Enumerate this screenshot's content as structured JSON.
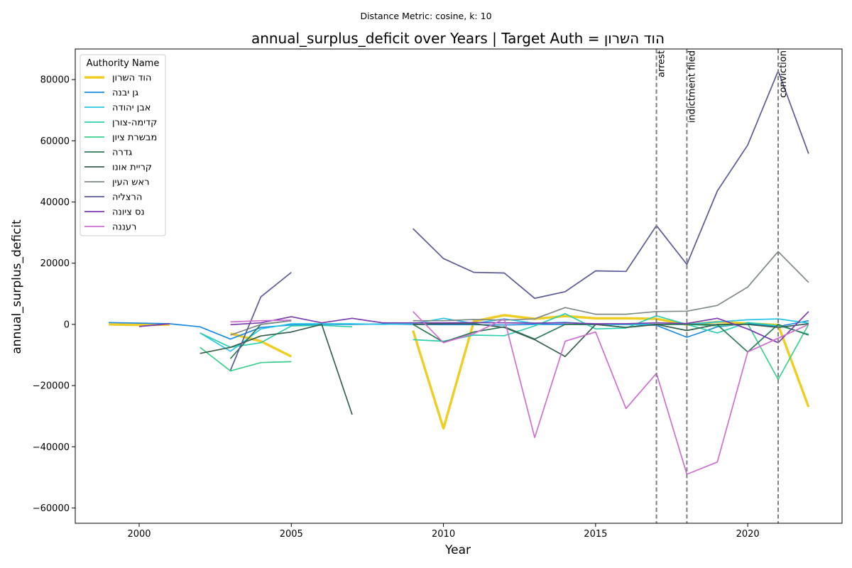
{
  "suptitle": "Distance Metric: cosine, k: 10",
  "chart_data": {
    "type": "line",
    "title": "annual_surplus_deficit over Years | Target Auth = הוד השרון",
    "xlabel": "Year",
    "ylabel": "annual_surplus_deficit",
    "xlim": [
      1997.9,
      2023.1
    ],
    "ylim": [
      -65000,
      90000
    ],
    "x_ticks": [
      2000,
      2005,
      2010,
      2015,
      2020
    ],
    "y_ticks": [
      -60000,
      -40000,
      -20000,
      0,
      20000,
      40000,
      60000,
      80000
    ],
    "x_tick_labels": [
      "2000",
      "2005",
      "2010",
      "2015",
      "2020"
    ],
    "y_tick_labels": [
      "−60000",
      "−40000",
      "−20000",
      "0",
      "20000",
      "40000",
      "60000",
      "80000"
    ],
    "legend_title": "Authority Name",
    "legend_position": "upper-left",
    "grid": false,
    "events": [
      {
        "x": 2017,
        "label": "arrest"
      },
      {
        "x": 2018,
        "label": "indictment filed"
      },
      {
        "x": 2021,
        "label": "conviction"
      }
    ],
    "series": [
      {
        "name": "הוד השרון",
        "color": "#f0cd22",
        "width": 3.4,
        "points": [
          [
            1999,
            0
          ],
          [
            2000,
            -200
          ],
          [
            2001,
            -100
          ],
          [
            2003,
            -3000
          ],
          [
            2004,
            -5500
          ],
          [
            2005,
            -10500
          ],
          [
            2009,
            -2000
          ],
          [
            2010,
            -34000
          ],
          [
            2011,
            1000
          ],
          [
            2012,
            3000
          ],
          [
            2013,
            1800
          ],
          [
            2014,
            2700
          ],
          [
            2015,
            2000
          ],
          [
            2016,
            2000
          ],
          [
            2017,
            1800
          ],
          [
            2018,
            -100
          ],
          [
            2019,
            800
          ],
          [
            2020,
            300
          ],
          [
            2021,
            -200
          ],
          [
            2022,
            -27000
          ]
        ]
      },
      {
        "name": "גן יבנה",
        "color": "#1c8be0",
        "width": 1.7,
        "points": [
          [
            1999,
            600
          ],
          [
            2000,
            400
          ],
          [
            2001,
            200
          ],
          [
            2002,
            -800
          ],
          [
            2003,
            -4800
          ],
          [
            2004,
            -1000
          ],
          [
            2005,
            -200
          ],
          [
            2006,
            0
          ],
          [
            2007,
            0
          ],
          [
            2008,
            100
          ],
          [
            2009,
            0
          ],
          [
            2010,
            -100
          ],
          [
            2011,
            -100
          ],
          [
            2012,
            -200
          ],
          [
            2013,
            0
          ],
          [
            2014,
            0
          ],
          [
            2015,
            -100
          ],
          [
            2016,
            0
          ],
          [
            2017,
            -300
          ],
          [
            2018,
            -4200
          ],
          [
            2019,
            -800
          ],
          [
            2020,
            300
          ],
          [
            2021,
            -700
          ],
          [
            2022,
            1200
          ]
        ]
      },
      {
        "name": "אבן יהודה",
        "color": "#29c5e8",
        "width": 1.7,
        "points": [
          [
            2002,
            -2800
          ],
          [
            2003,
            -8800
          ],
          [
            2004,
            -1500
          ],
          [
            2005,
            200
          ],
          [
            2006,
            200
          ],
          [
            2007,
            200
          ],
          [
            2008,
            0
          ],
          [
            2009,
            200
          ],
          [
            2010,
            2000
          ],
          [
            2011,
            300
          ],
          [
            2012,
            1800
          ],
          [
            2013,
            300
          ],
          [
            2014,
            700
          ],
          [
            2015,
            0
          ],
          [
            2016,
            0
          ],
          [
            2017,
            0
          ],
          [
            2018,
            0
          ],
          [
            2019,
            800
          ],
          [
            2020,
            1500
          ],
          [
            2021,
            1800
          ],
          [
            2022,
            400
          ]
        ]
      },
      {
        "name": "קדימה-צורן",
        "color": "#2ecfae",
        "width": 1.7,
        "points": [
          [
            2002,
            -2800
          ],
          [
            2003,
            -7500
          ],
          [
            2004,
            -6000
          ],
          [
            2005,
            -500
          ],
          [
            2006,
            -300
          ],
          [
            2007,
            -800
          ],
          [
            2009,
            -5000
          ],
          [
            2010,
            -5500
          ],
          [
            2011,
            -3500
          ],
          [
            2012,
            -3700
          ],
          [
            2013,
            -500
          ],
          [
            2014,
            3500
          ],
          [
            2015,
            -1500
          ],
          [
            2016,
            -1200
          ],
          [
            2017,
            2800
          ],
          [
            2018,
            0
          ],
          [
            2019,
            -2800
          ],
          [
            2020,
            600
          ],
          [
            2021,
            -400
          ],
          [
            2022,
            -3200
          ]
        ]
      },
      {
        "name": "מבשרת ציון",
        "color": "#3dcf8e",
        "width": 1.7,
        "points": [
          [
            2002,
            -7500
          ],
          [
            2003,
            -15200
          ],
          [
            2004,
            -12500
          ],
          [
            2005,
            -12200
          ],
          [
            2018,
            0
          ],
          [
            2019,
            -500
          ],
          [
            2020,
            200
          ],
          [
            2021,
            -18000
          ],
          [
            2022,
            0
          ]
        ]
      },
      {
        "name": "גדרה",
        "color": "#2e7a58",
        "width": 1.7,
        "points": [
          [
            2003,
            -11200
          ],
          [
            2004,
            0
          ],
          [
            2005,
            1200
          ],
          [
            2009,
            0
          ],
          [
            2010,
            -5800
          ],
          [
            2011,
            -2500
          ],
          [
            2012,
            -800
          ],
          [
            2013,
            -4800
          ],
          [
            2014,
            0
          ],
          [
            2015,
            0
          ],
          [
            2016,
            -1000
          ],
          [
            2017,
            0
          ],
          [
            2018,
            0
          ],
          [
            2019,
            -100
          ],
          [
            2020,
            -9000
          ],
          [
            2021,
            0
          ],
          [
            2022,
            -3500
          ]
        ]
      },
      {
        "name": "קריית אונו",
        "color": "#36604d",
        "width": 1.7,
        "points": [
          [
            2002,
            -9500
          ],
          [
            2003,
            -7500
          ],
          [
            2004,
            -3800
          ],
          [
            2005,
            -2500
          ],
          [
            2006,
            0
          ],
          [
            2007,
            -29500
          ],
          [
            2009,
            0
          ],
          [
            2010,
            200
          ],
          [
            2011,
            200
          ],
          [
            2012,
            -1000
          ],
          [
            2013,
            -5000
          ],
          [
            2014,
            -10500
          ],
          [
            2015,
            0
          ],
          [
            2016,
            -1000
          ],
          [
            2017,
            0
          ],
          [
            2018,
            -2000
          ],
          [
            2019,
            0
          ],
          [
            2020,
            0
          ],
          [
            2021,
            -1000
          ],
          [
            2022,
            200
          ]
        ]
      },
      {
        "name": "ראש העין",
        "color": "#7e8a86",
        "width": 1.7,
        "points": [
          [
            2003,
            -3500
          ],
          [
            2004,
            0
          ],
          [
            2005,
            1200
          ],
          [
            2009,
            1200
          ],
          [
            2010,
            1200
          ],
          [
            2011,
            1600
          ],
          [
            2012,
            1400
          ],
          [
            2013,
            1800
          ],
          [
            2014,
            5500
          ],
          [
            2015,
            3300
          ],
          [
            2016,
            3300
          ],
          [
            2017,
            4200
          ],
          [
            2018,
            4300
          ],
          [
            2019,
            6200
          ],
          [
            2020,
            12200
          ],
          [
            2021,
            23800
          ],
          [
            2022,
            13700
          ]
        ]
      },
      {
        "name": "הרצליה",
        "color": "#5a5a96",
        "width": 1.7,
        "points": [
          [
            2003,
            -15000
          ],
          [
            2004,
            9000
          ],
          [
            2005,
            17000
          ],
          [
            2009,
            31300
          ],
          [
            2010,
            21500
          ],
          [
            2011,
            17000
          ],
          [
            2012,
            16800
          ],
          [
            2013,
            8500
          ],
          [
            2014,
            10700
          ],
          [
            2015,
            17500
          ],
          [
            2016,
            17300
          ],
          [
            2017,
            32300
          ],
          [
            2018,
            19600
          ],
          [
            2019,
            43600
          ],
          [
            2020,
            58600
          ],
          [
            2021,
            82800
          ],
          [
            2022,
            55800
          ]
        ]
      },
      {
        "name": "נס ציונה",
        "color": "#7a3ab0",
        "width": 1.7,
        "points": [
          [
            2000,
            -700
          ],
          [
            2001,
            200
          ],
          [
            2003,
            -100
          ],
          [
            2004,
            500
          ],
          [
            2005,
            2500
          ],
          [
            2006,
            500
          ],
          [
            2007,
            2000
          ],
          [
            2008,
            500
          ],
          [
            2009,
            500
          ],
          [
            2010,
            500
          ],
          [
            2011,
            600
          ],
          [
            2012,
            500
          ],
          [
            2013,
            400
          ],
          [
            2014,
            500
          ],
          [
            2015,
            200
          ],
          [
            2016,
            200
          ],
          [
            2017,
            500
          ],
          [
            2018,
            300
          ],
          [
            2019,
            2000
          ],
          [
            2020,
            -1500
          ],
          [
            2021,
            -6000
          ],
          [
            2022,
            4200
          ]
        ]
      },
      {
        "name": "רעננה",
        "color": "#cd6fd0",
        "width": 1.7,
        "points": [
          [
            2003,
            800
          ],
          [
            2004,
            1200
          ],
          [
            2005,
            1400
          ],
          [
            2009,
            4200
          ],
          [
            2010,
            -6000
          ],
          [
            2011,
            -3000
          ],
          [
            2012,
            1800
          ],
          [
            2013,
            -37000
          ],
          [
            2014,
            -5500
          ],
          [
            2015,
            -2500
          ],
          [
            2016,
            -27500
          ],
          [
            2017,
            -16000
          ],
          [
            2018,
            -49000
          ],
          [
            2019,
            -45000
          ],
          [
            2020,
            -9000
          ],
          [
            2021,
            -4500
          ],
          [
            2022,
            0
          ]
        ]
      }
    ]
  }
}
